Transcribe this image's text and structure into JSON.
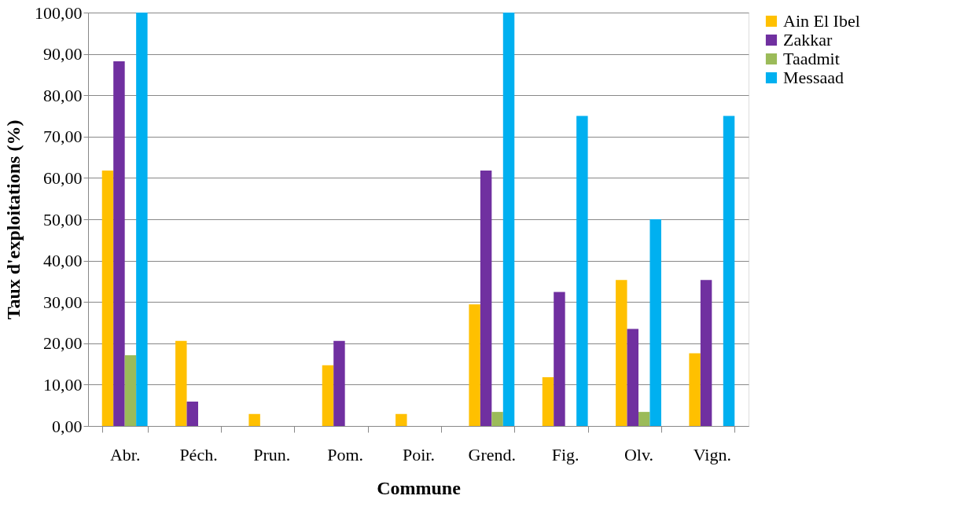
{
  "chart_data": {
    "type": "bar",
    "xlabel": "Commune",
    "ylabel": "Taux d'exploitations (%)",
    "categories": [
      "Abr.",
      "Péch.",
      "Prun.",
      "Pom.",
      "Poir.",
      "Grend.",
      "Fig.",
      "Olv.",
      "Vign."
    ],
    "series": [
      {
        "name": "Ain El Ibel",
        "color": "#ffc000",
        "values": [
          61.8,
          20.6,
          2.9,
          14.7,
          2.9,
          29.4,
          11.8,
          35.3,
          17.6
        ]
      },
      {
        "name": "Zakkar",
        "color": "#7030a0",
        "values": [
          88.2,
          5.9,
          0,
          20.6,
          0,
          61.8,
          32.4,
          23.5,
          35.3
        ]
      },
      {
        "name": "Taadmit",
        "color": "#9bbb59",
        "values": [
          17.1,
          0,
          0,
          0,
          0,
          3.4,
          0,
          3.4,
          0
        ]
      },
      {
        "name": "Messaad",
        "color": "#00b0f0",
        "values": [
          100,
          0,
          0,
          0,
          0,
          100,
          75,
          50,
          75
        ]
      }
    ],
    "ylim": [
      0,
      100
    ],
    "yticks": [
      {
        "value": 0,
        "label": "0,00"
      },
      {
        "value": 10,
        "label": "10,00"
      },
      {
        "value": 20,
        "label": "20,00"
      },
      {
        "value": 30,
        "label": "30,00"
      },
      {
        "value": 40,
        "label": "40,00"
      },
      {
        "value": 50,
        "label": "50,00"
      },
      {
        "value": 60,
        "label": "60,00"
      },
      {
        "value": 70,
        "label": "70,00"
      },
      {
        "value": 80,
        "label": "80,00"
      },
      {
        "value": 90,
        "label": "90,00"
      },
      {
        "value": 100,
        "label": "100,00"
      }
    ],
    "grid": "y",
    "legend": "right"
  }
}
